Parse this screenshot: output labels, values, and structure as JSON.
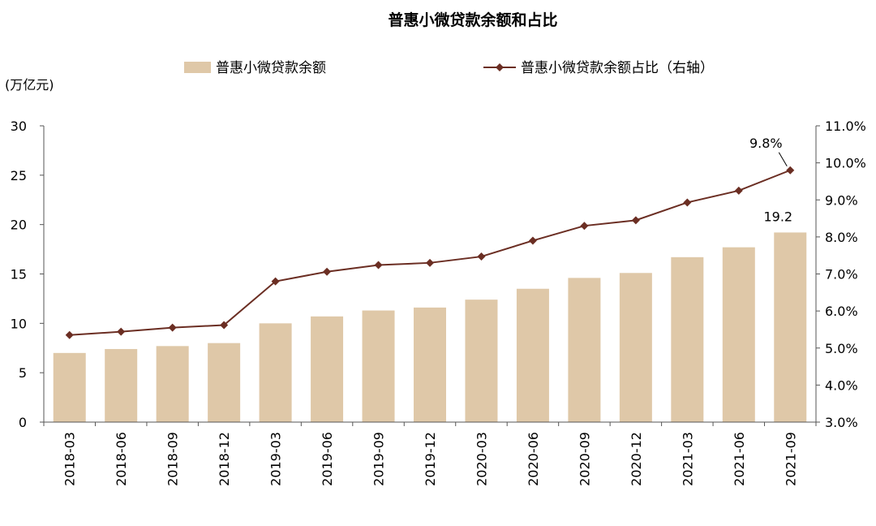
{
  "chart_data": {
    "type": "bar+line",
    "title": "普惠小微贷款余额和占比",
    "left_axis_unit": "(万亿元)",
    "categories": [
      "2018-03",
      "2018-06",
      "2018-09",
      "2018-12",
      "2019-03",
      "2019-06",
      "2019-09",
      "2019-12",
      "2020-03",
      "2020-06",
      "2020-09",
      "2020-12",
      "2021-03",
      "2021-06",
      "2021-09"
    ],
    "series": [
      {
        "name": "普惠小微贷款余额",
        "type": "bar",
        "axis": "left",
        "color": "#dfc8a8",
        "values": [
          7.0,
          7.4,
          7.7,
          8.0,
          10.0,
          10.7,
          11.3,
          11.6,
          12.4,
          13.5,
          14.6,
          15.1,
          16.7,
          17.7,
          19.2
        ]
      },
      {
        "name": "普惠小微贷款余额占比（右轴）",
        "type": "line",
        "axis": "right",
        "color": "#6b2e23",
        "marker": "diamond",
        "values": [
          5.35,
          5.44,
          5.55,
          5.62,
          6.8,
          7.06,
          7.24,
          7.3,
          7.47,
          7.9,
          8.3,
          8.45,
          8.93,
          9.25,
          9.8
        ]
      }
    ],
    "left_axis": {
      "min": 0,
      "max": 30,
      "ticks": [
        "0",
        "5",
        "10",
        "15",
        "20",
        "25",
        "30"
      ]
    },
    "right_axis": {
      "min": 3.0,
      "max": 11.0,
      "ticks": [
        "3.0%",
        "4.0%",
        "5.0%",
        "6.0%",
        "7.0%",
        "8.0%",
        "9.0%",
        "10.0%",
        "11.0%"
      ]
    },
    "annotations": {
      "last_bar_label": "19.2",
      "last_line_label": "9.8%"
    },
    "grid": false,
    "legend_position": "top"
  }
}
